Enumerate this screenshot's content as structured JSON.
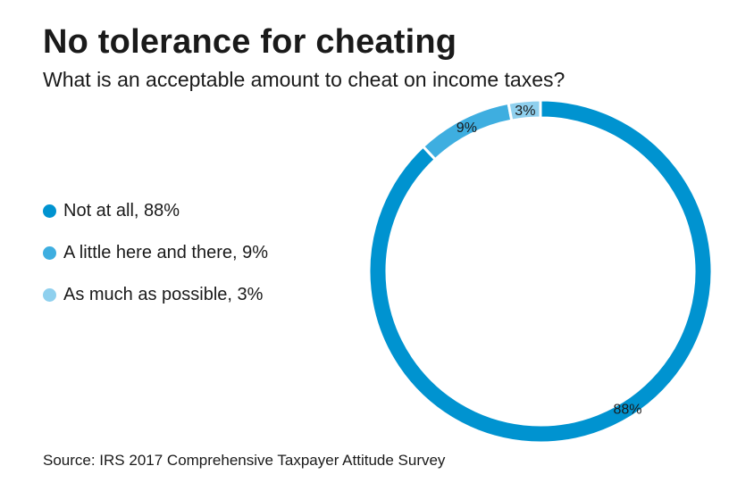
{
  "chart_data": {
    "type": "pie",
    "style": "donut",
    "title": "No tolerance for cheating",
    "subtitle": "What is an acceptable amount to cheat on income taxes?",
    "slices": [
      {
        "legend_label": "Not at all, 88%",
        "value": 88,
        "data_label": "88%",
        "color": "#0093d0"
      },
      {
        "legend_label": "A little here and there, 9%",
        "value": 9,
        "data_label": "9%",
        "color": "#3eaee0"
      },
      {
        "legend_label": "As much as possible, 3%",
        "value": 3,
        "data_label": "3%",
        "color": "#8fd0ee"
      }
    ],
    "legend_placement": "left",
    "source": "Source: IRS 2017 Comprehensive Taxpayer Attitude Survey"
  }
}
